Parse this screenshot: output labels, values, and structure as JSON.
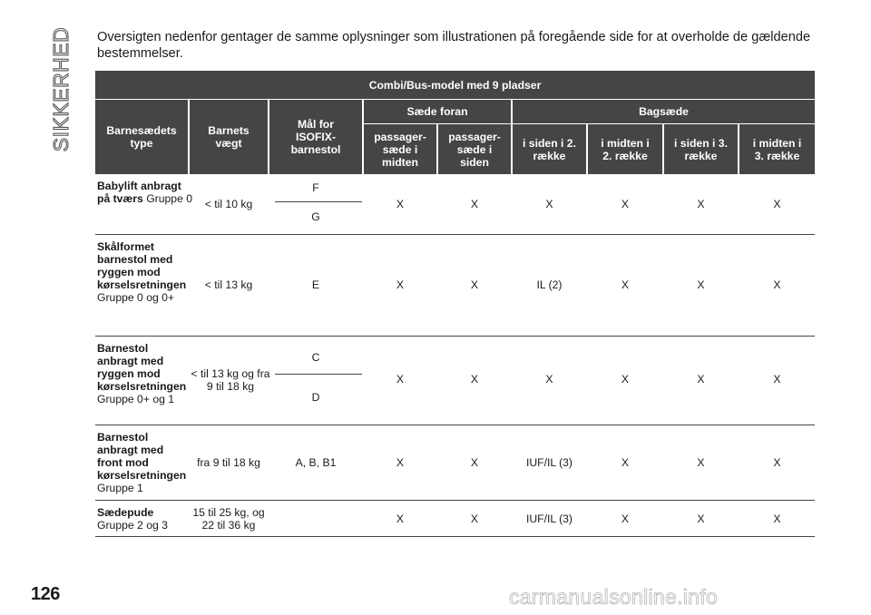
{
  "side_title": "SIKKERHED",
  "page_number": "126",
  "watermark": "carmanualsonline.info",
  "intro": "Oversigten nedenfor gentager de samme oplysninger som illustrationen på foregående side for at overholde de gældende bestemmelser.",
  "table": {
    "title": "Combi/Bus-model med 9 pladser",
    "headers": {
      "type": "Barnesædets type",
      "weight": "Barnets vægt",
      "isofix": "Mål for ISOFIX-barnestol",
      "front": "Sæde foran",
      "rear": "Bagsæde",
      "sub": [
        "passager-sæde i midten",
        "passager-sæde i siden",
        "i siden i 2. række",
        "i midten i 2. række",
        "i siden i 3. række",
        "i midten i 3. række"
      ]
    },
    "rows": [
      {
        "label_bold": "Babylift anbragt på tværs",
        "label_normal": "Gruppe 0",
        "weight": "< til 10 kg",
        "isofix": [
          "F",
          "G"
        ],
        "values": [
          "X",
          "X",
          "X",
          "X",
          "X",
          "X"
        ]
      },
      {
        "label_bold": "Skålformet barnestol med ryggen mod kørselsretningen",
        "label_normal": "Gruppe 0 og 0+",
        "weight": "< til 13 kg",
        "isofix": [
          "E"
        ],
        "values": [
          "X",
          "X",
          "IL (2)",
          "X",
          "X",
          "X"
        ]
      },
      {
        "label_bold": "Barnestol anbragt med ryggen mod kørselsretningen",
        "label_normal": "Gruppe 0+ og 1",
        "weight": "< til 13 kg og fra 9 til 18 kg",
        "isofix": [
          "C",
          "D"
        ],
        "values": [
          "X",
          "X",
          "X",
          "X",
          "X",
          "X"
        ]
      },
      {
        "label_bold": "Barnestol anbragt med front mod kørselsretningen",
        "label_normal": "Gruppe 1",
        "weight": "fra 9 til 18 kg",
        "isofix": [
          "A, B, B1"
        ],
        "values": [
          "X",
          "X",
          "IUF/IL (3)",
          "X",
          "X",
          "X"
        ]
      },
      {
        "label_bold": "Sædepude",
        "label_normal": "Gruppe 2 og 3",
        "weight": "15 til 25 kg, og 22 til 36 kg",
        "isofix": [],
        "values": [
          "X",
          "X",
          "IUF/IL (3)",
          "X",
          "X",
          "X"
        ]
      }
    ]
  }
}
